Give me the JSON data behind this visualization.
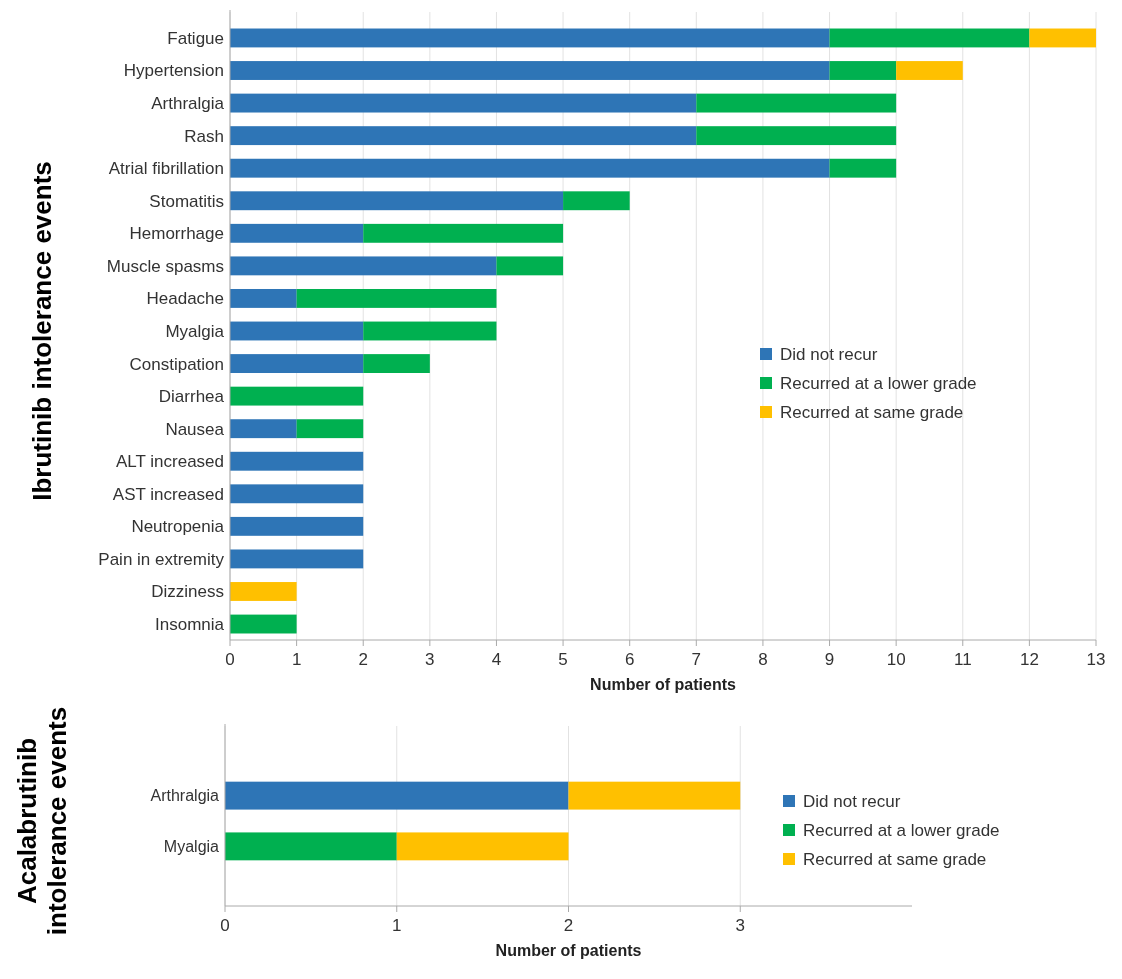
{
  "chart_data": [
    {
      "type": "bar",
      "orientation": "horizontal",
      "stacked": true,
      "ylabel": "Ibrutinib intolerance events",
      "xlabel": "Number of patients",
      "categories": [
        "Fatigue",
        "Hypertension",
        "Arthralgia",
        "Rash",
        "Atrial fibrillation",
        "Stomatitis",
        "Hemorrhage",
        "Muscle spasms",
        "Headache",
        "Myalgia",
        "Constipation",
        "Diarrhea",
        "Nausea",
        "ALT increased",
        "AST increased",
        "Neutropenia",
        "Pain in extremity",
        "Dizziness",
        "Insomnia"
      ],
      "series": [
        {
          "name": "Did not recur",
          "color": "#2e75b6",
          "values": [
            9,
            9,
            7,
            7,
            9,
            5,
            2,
            4,
            1,
            2,
            2,
            0,
            1,
            2,
            2,
            2,
            2,
            0,
            0
          ]
        },
        {
          "name": "Recurred at a lower grade",
          "color": "#00b050",
          "values": [
            3,
            1,
            3,
            3,
            1,
            1,
            3,
            1,
            3,
            2,
            1,
            2,
            1,
            0,
            0,
            0,
            0,
            0,
            1
          ]
        },
        {
          "name": "Recurred at same grade",
          "color": "#ffc000",
          "values": [
            1,
            1,
            0,
            0,
            0,
            0,
            0,
            0,
            0,
            0,
            0,
            0,
            0,
            0,
            0,
            0,
            0,
            1,
            0
          ]
        }
      ],
      "xlim": [
        0,
        13
      ],
      "xticks": [
        0,
        1,
        2,
        3,
        4,
        5,
        6,
        7,
        8,
        9,
        10,
        11,
        12,
        13
      ],
      "grid": "x",
      "legend": "right"
    },
    {
      "type": "bar",
      "orientation": "horizontal",
      "stacked": true,
      "ylabel": "Acalabrutinib\nintolerance events",
      "xlabel": "Number of patients",
      "categories": [
        "Arthralgia",
        "Myalgia"
      ],
      "series": [
        {
          "name": "Did not recur",
          "color": "#2e75b6",
          "values": [
            2,
            0
          ]
        },
        {
          "name": "Recurred at a lower grade",
          "color": "#00b050",
          "values": [
            0,
            1
          ]
        },
        {
          "name": "Recurred at same grade",
          "color": "#ffc000",
          "values": [
            1,
            1
          ]
        }
      ],
      "xlim": [
        0,
        4
      ],
      "xticks": [
        0,
        1,
        2,
        3
      ],
      "grid": "x",
      "legend": "right"
    }
  ]
}
